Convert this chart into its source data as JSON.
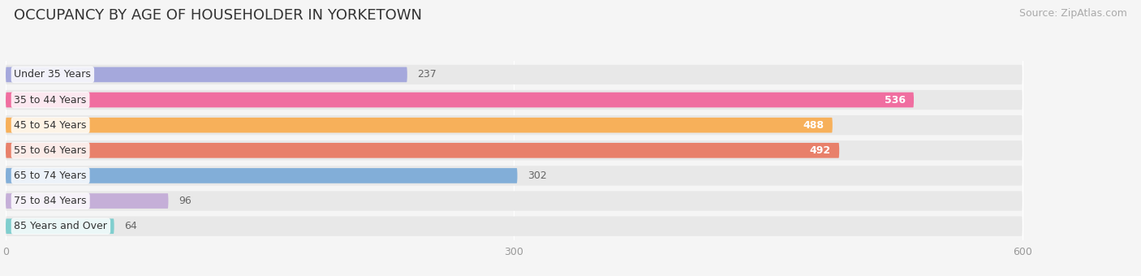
{
  "title": "OCCUPANCY BY AGE OF HOUSEHOLDER IN YORKETOWN",
  "source": "Source: ZipAtlas.com",
  "categories": [
    "Under 35 Years",
    "35 to 44 Years",
    "45 to 54 Years",
    "55 to 64 Years",
    "65 to 74 Years",
    "75 to 84 Years",
    "85 Years and Over"
  ],
  "values": [
    237,
    536,
    488,
    492,
    302,
    96,
    64
  ],
  "bar_colors": [
    "#a5a8dc",
    "#f06ea0",
    "#f7b05a",
    "#e8806a",
    "#82aed8",
    "#c5afd8",
    "#80cece"
  ],
  "label_colors": [
    "#555555",
    "#ffffff",
    "#ffffff",
    "#ffffff",
    "#555555",
    "#555555",
    "#555555"
  ],
  "xlim": [
    0,
    660
  ],
  "data_max": 600,
  "xticks": [
    0,
    300,
    600
  ],
  "background_color": "#f5f5f5",
  "bar_bg_color": "#e8e8e8",
  "title_fontsize": 13,
  "source_fontsize": 9,
  "bar_label_fontsize": 9,
  "category_fontsize": 9
}
